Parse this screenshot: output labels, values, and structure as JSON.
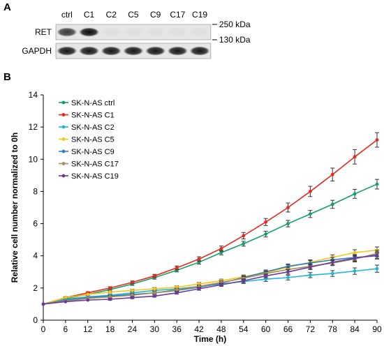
{
  "figure": {
    "panel_a_label": "A",
    "panel_b_label": "B"
  },
  "western_blot": {
    "lanes": [
      "ctrl",
      "C1",
      "C2",
      "C5",
      "C9",
      "C17",
      "C19"
    ],
    "rows": [
      {
        "label": "RET",
        "band_intensity": [
          0.75,
          0.95,
          0.03,
          0.03,
          0.03,
          0.03,
          0.03
        ]
      },
      {
        "label": "GAPDH",
        "band_intensity": [
          0.9,
          0.9,
          0.9,
          0.9,
          0.9,
          0.9,
          0.9
        ]
      }
    ],
    "markers": [
      "250 kDa",
      "130 kDa"
    ]
  },
  "chart_data": {
    "type": "line",
    "xlabel": "Time (h)",
    "ylabel": "Relative cell number normalized to 0h",
    "xlim": [
      0,
      90
    ],
    "ylim": [
      0,
      14
    ],
    "xticks": [
      0,
      6,
      12,
      18,
      24,
      30,
      36,
      42,
      48,
      54,
      60,
      66,
      72,
      78,
      84,
      90
    ],
    "yticks": [
      0,
      2,
      4,
      6,
      8,
      10,
      12,
      14
    ],
    "grid": false,
    "legend_position": "top-left",
    "x": [
      0,
      6,
      12,
      18,
      24,
      30,
      36,
      42,
      48,
      54,
      60,
      66,
      72,
      78,
      84,
      90
    ],
    "series": [
      {
        "name": "SK-N-AS ctrl",
        "color": "#12a06a",
        "values": [
          1.0,
          1.35,
          1.6,
          1.9,
          2.25,
          2.65,
          3.1,
          3.6,
          4.2,
          4.75,
          5.35,
          6.0,
          6.6,
          7.2,
          7.85,
          8.45
        ],
        "errors": [
          0.05,
          0.06,
          0.07,
          0.08,
          0.09,
          0.1,
          0.1,
          0.12,
          0.14,
          0.15,
          0.18,
          0.2,
          0.22,
          0.25,
          0.28,
          0.3
        ]
      },
      {
        "name": "SK-N-AS C1",
        "color": "#e8281e",
        "values": [
          1.0,
          1.4,
          1.7,
          2.0,
          2.35,
          2.75,
          3.25,
          3.8,
          4.45,
          5.25,
          6.1,
          7.0,
          8.0,
          9.05,
          10.15,
          11.2
        ],
        "errors": [
          0.05,
          0.06,
          0.07,
          0.08,
          0.09,
          0.1,
          0.12,
          0.14,
          0.16,
          0.2,
          0.22,
          0.28,
          0.32,
          0.4,
          0.45,
          0.45
        ]
      },
      {
        "name": "SK-N-AS C2",
        "color": "#1fb5d6",
        "values": [
          1.0,
          1.3,
          1.45,
          1.55,
          1.7,
          1.85,
          1.95,
          2.1,
          2.25,
          2.4,
          2.55,
          2.65,
          2.8,
          2.9,
          3.05,
          3.2
        ],
        "errors": [
          0.04,
          0.05,
          0.05,
          0.06,
          0.06,
          0.07,
          0.07,
          0.08,
          0.1,
          0.12,
          0.14,
          0.15,
          0.16,
          0.18,
          0.2,
          0.22
        ]
      },
      {
        "name": "SK-N-AS C5",
        "color": "#f5c518",
        "values": [
          1.0,
          1.4,
          1.6,
          1.75,
          1.85,
          1.95,
          2.05,
          2.25,
          2.45,
          2.7,
          2.95,
          3.3,
          3.6,
          3.9,
          4.2,
          4.35
        ],
        "errors": [
          0.04,
          0.05,
          0.05,
          0.06,
          0.07,
          0.08,
          0.08,
          0.09,
          0.1,
          0.11,
          0.12,
          0.14,
          0.15,
          0.16,
          0.18,
          0.2
        ]
      },
      {
        "name": "SK-N-AS C9",
        "color": "#2e7dc4",
        "values": [
          1.0,
          1.25,
          1.4,
          1.5,
          1.6,
          1.7,
          1.85,
          2.05,
          2.3,
          2.65,
          3.0,
          3.35,
          3.55,
          3.75,
          3.9,
          4.0
        ],
        "errors": [
          0.04,
          0.05,
          0.05,
          0.06,
          0.06,
          0.07,
          0.08,
          0.09,
          0.1,
          0.11,
          0.12,
          0.14,
          0.15,
          0.16,
          0.18,
          0.2
        ]
      },
      {
        "name": "SK-N-AS C17",
        "color": "#a88f55",
        "values": [
          1.0,
          1.2,
          1.35,
          1.45,
          1.55,
          1.7,
          1.9,
          2.1,
          2.35,
          2.6,
          2.9,
          3.15,
          3.35,
          3.55,
          3.8,
          4.15
        ],
        "errors": [
          0.04,
          0.05,
          0.05,
          0.06,
          0.06,
          0.07,
          0.08,
          0.09,
          0.1,
          0.11,
          0.12,
          0.14,
          0.15,
          0.16,
          0.18,
          0.2
        ]
      },
      {
        "name": "SK-N-AS C19",
        "color": "#6a3a9a",
        "values": [
          1.0,
          1.15,
          1.25,
          1.3,
          1.4,
          1.5,
          1.7,
          1.95,
          2.2,
          2.45,
          2.75,
          3.0,
          3.3,
          3.6,
          3.85,
          4.05
        ],
        "errors": [
          0.04,
          0.05,
          0.05,
          0.06,
          0.06,
          0.07,
          0.08,
          0.09,
          0.1,
          0.11,
          0.12,
          0.14,
          0.15,
          0.16,
          0.18,
          0.2
        ]
      }
    ]
  }
}
